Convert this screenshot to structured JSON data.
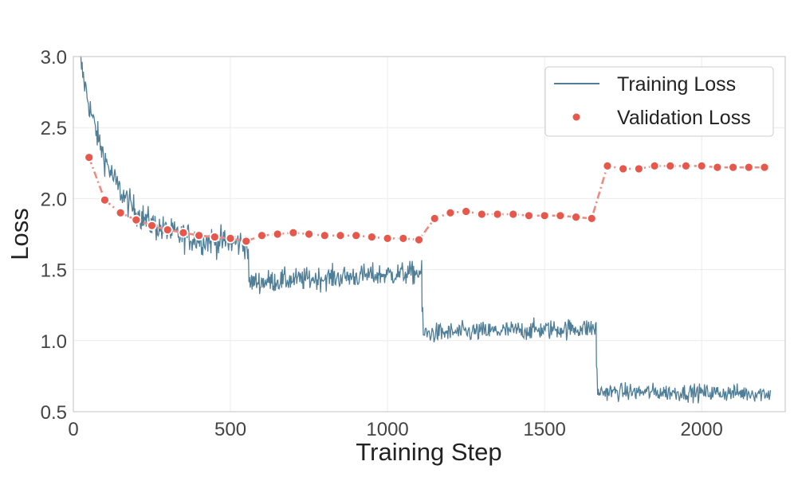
{
  "chart_data": {
    "type": "line",
    "title": "",
    "xlabel": "Training Step",
    "ylabel": "Loss",
    "xlim": [
      0,
      2266
    ],
    "ylim": [
      0.5,
      3.0
    ],
    "xticks": [
      0,
      500,
      1000,
      1500,
      2000
    ],
    "xtick_labels": [
      "0",
      "500",
      "1000",
      "1500",
      "2000"
    ],
    "yticks": [
      0.5,
      1.0,
      1.5,
      2.0,
      2.5,
      3.0
    ],
    "ytick_labels": [
      "0.5",
      "1.0",
      "1.5",
      "2.0",
      "2.5",
      "3.0"
    ],
    "grid": true,
    "legend_position": "top-right",
    "colors": {
      "training": "#4f7f98",
      "validation": "#e8574b",
      "validation_line": "#ef8a80"
    },
    "series": [
      {
        "name": "Training Loss",
        "kind": "noisy-line",
        "segments": [
          {
            "start": 20,
            "end": 555,
            "shape": "decay",
            "from": 3.0,
            "to": 1.68,
            "noise": 0.05
          },
          {
            "start": 555,
            "end": 1110,
            "shape": "linear",
            "from": 1.41,
            "to": 1.48,
            "noise": 0.04
          },
          {
            "start": 1110,
            "end": 1665,
            "shape": "linear",
            "from": 1.05,
            "to": 1.09,
            "noise": 0.035
          },
          {
            "start": 1665,
            "end": 2220,
            "shape": "linear",
            "from": 0.64,
            "to": 0.63,
            "noise": 0.03
          }
        ]
      },
      {
        "name": "Validation Loss",
        "kind": "markers-dashdot",
        "x": [
          50,
          100,
          150,
          200,
          250,
          300,
          350,
          400,
          450,
          500,
          550,
          600,
          650,
          700,
          750,
          800,
          850,
          900,
          950,
          1000,
          1050,
          1100,
          1150,
          1200,
          1250,
          1300,
          1350,
          1400,
          1450,
          1500,
          1550,
          1600,
          1650,
          1700,
          1750,
          1800,
          1850,
          1900,
          1950,
          2000,
          2050,
          2100,
          2150,
          2200
        ],
        "values": [
          2.29,
          1.99,
          1.9,
          1.85,
          1.81,
          1.78,
          1.76,
          1.74,
          1.73,
          1.72,
          1.7,
          1.74,
          1.75,
          1.76,
          1.75,
          1.74,
          1.74,
          1.74,
          1.73,
          1.72,
          1.72,
          1.71,
          1.86,
          1.9,
          1.91,
          1.89,
          1.89,
          1.89,
          1.88,
          1.88,
          1.88,
          1.87,
          1.86,
          2.23,
          2.21,
          2.21,
          2.23,
          2.23,
          2.23,
          2.23,
          2.22,
          2.22,
          2.22,
          2.22
        ]
      }
    ]
  }
}
